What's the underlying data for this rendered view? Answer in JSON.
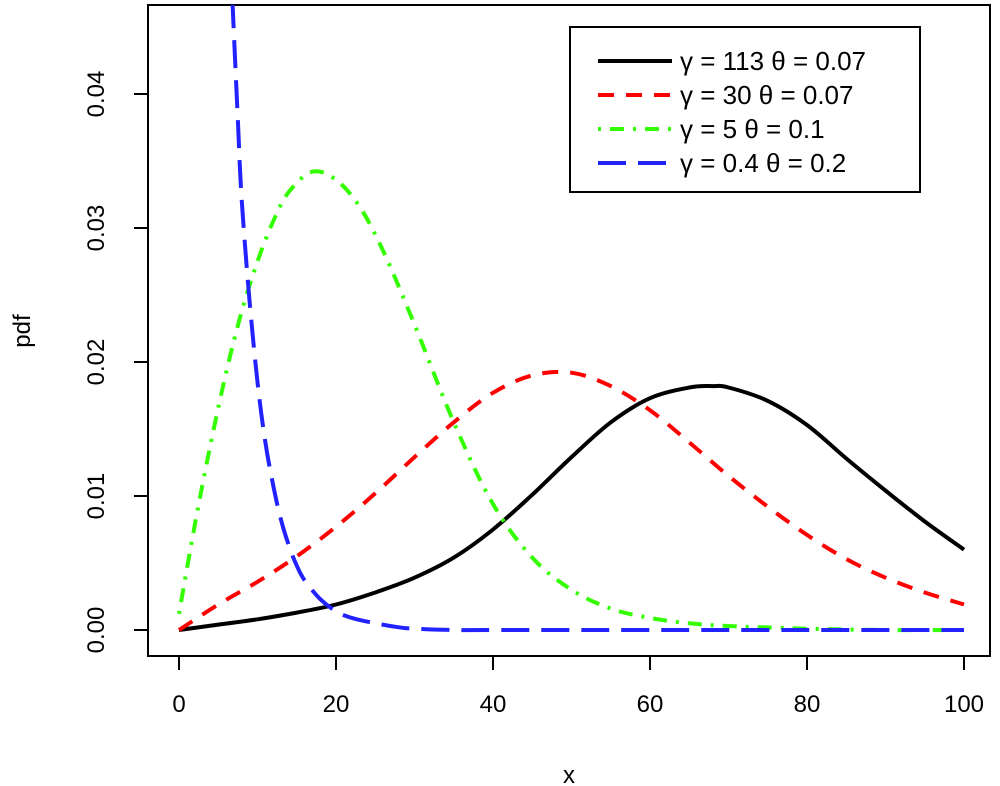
{
  "chart_data": {
    "type": "line",
    "title": "",
    "xlabel": "x",
    "ylabel": "pdf",
    "xlim": [
      0,
      100
    ],
    "ylim": [
      0,
      0.047
    ],
    "x_ticks": [
      0,
      20,
      40,
      60,
      80,
      100
    ],
    "x_tick_labels": [
      "0",
      "20",
      "40",
      "60",
      "80",
      "100"
    ],
    "y_ticks": [
      0,
      0.01,
      0.02,
      0.03,
      0.04
    ],
    "y_tick_labels": [
      "0.00",
      "0.01",
      "0.02",
      "0.03",
      "0.04"
    ],
    "grid": false,
    "legend_position": "top-right",
    "series": [
      {
        "name": "γ = 113  θ = 0.07",
        "color": "#000000",
        "dash": "solid",
        "x": [
          0,
          5,
          10,
          15,
          20,
          25,
          30,
          35,
          40,
          45,
          50,
          55,
          60,
          65,
          68,
          70,
          75,
          80,
          85,
          90,
          95,
          100
        ],
        "y": [
          0.0,
          0.0004,
          0.0008,
          0.0013,
          0.0019,
          0.0028,
          0.0039,
          0.0054,
          0.0075,
          0.0101,
          0.0129,
          0.0155,
          0.0173,
          0.0181,
          0.0182,
          0.0181,
          0.0171,
          0.0153,
          0.0128,
          0.0104,
          0.0081,
          0.006
        ]
      },
      {
        "name": "γ = 30  θ = 0.07",
        "color": "#ff0000",
        "dash": "dashed",
        "x": [
          0,
          5,
          10,
          15,
          20,
          25,
          30,
          35,
          40,
          45,
          50,
          55,
          60,
          65,
          70,
          75,
          80,
          85,
          90,
          95,
          100
        ],
        "y": [
          0.0,
          0.0019,
          0.0036,
          0.0055,
          0.0077,
          0.0102,
          0.0129,
          0.0155,
          0.0177,
          0.019,
          0.0192,
          0.0182,
          0.0164,
          0.014,
          0.0115,
          0.0092,
          0.0071,
          0.0053,
          0.0039,
          0.0028,
          0.0019
        ]
      },
      {
        "name": "γ = 5  θ = 0.1",
        "color": "#33ff00",
        "dash": "dotdash",
        "x": [
          0,
          2,
          4,
          6,
          8,
          10,
          12,
          14,
          17,
          20,
          23,
          26,
          30,
          35,
          40,
          45,
          50,
          55,
          60,
          65,
          70,
          80,
          90,
          100
        ],
        "y": [
          0.0012,
          0.0078,
          0.0138,
          0.0192,
          0.0238,
          0.0275,
          0.0305,
          0.0327,
          0.0342,
          0.0336,
          0.0316,
          0.0283,
          0.0228,
          0.0155,
          0.0094,
          0.0054,
          0.003,
          0.0016,
          0.0009,
          0.0005,
          0.0003,
          0.0001,
          0.0,
          0.0
        ]
      },
      {
        "name": "γ = 0.4  θ = 0.2",
        "color": "#2222ff",
        "dash": "longdash",
        "x": [
          6.8,
          7.5,
          8,
          9,
          10,
          11,
          12,
          13,
          14,
          15,
          16,
          18,
          20,
          22,
          25,
          28,
          30,
          35,
          40,
          50,
          60,
          80,
          100
        ],
        "y": [
          0.047,
          0.038,
          0.032,
          0.0245,
          0.0185,
          0.014,
          0.0108,
          0.0082,
          0.0063,
          0.0048,
          0.0037,
          0.0023,
          0.0014,
          0.0009,
          0.0005,
          0.0002,
          0.0001,
          0.0,
          0.0,
          0.0,
          0.0,
          0.0,
          0.0
        ]
      }
    ]
  }
}
